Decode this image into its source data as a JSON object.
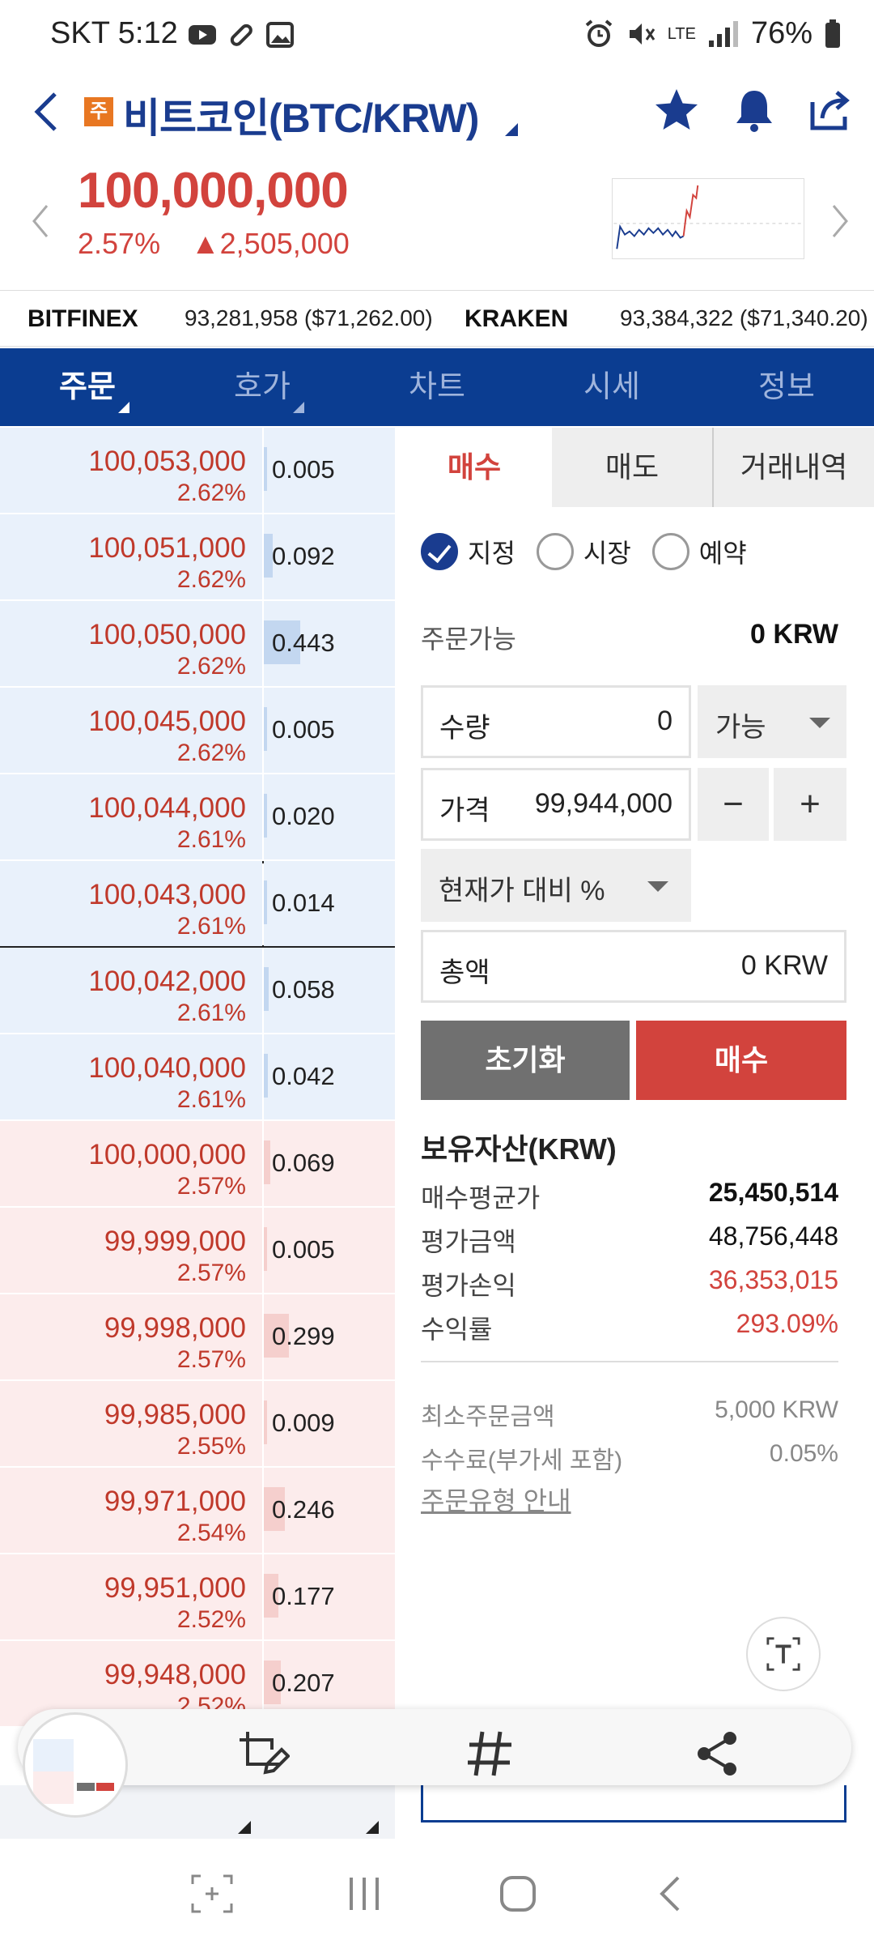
{
  "status": {
    "carrier": "SKT",
    "time": "5:12",
    "battery": "76%",
    "network": "LTE"
  },
  "header": {
    "badge": "주",
    "title": "비트코인(BTC/KRW)"
  },
  "ticker": {
    "price": "100,000,000",
    "change_pct": "2.57%",
    "change_amt": "▲2,505,000"
  },
  "exchanges": [
    {
      "name": "BITFINEX",
      "value": "93,281,958 ($71,262.00)"
    },
    {
      "name": "KRAKEN",
      "value": "93,384,322 ($71,340.20)"
    }
  ],
  "tabs": [
    {
      "label": "주문"
    },
    {
      "label": "호가"
    },
    {
      "label": "차트"
    },
    {
      "label": "시세"
    },
    {
      "label": "정보"
    }
  ],
  "orderbook": {
    "asks": [
      {
        "price": "100,053,000",
        "pct": "2.62%",
        "qty": "0.005",
        "depth": 0.01
      },
      {
        "price": "100,051,000",
        "pct": "2.62%",
        "qty": "0.092",
        "depth": 0.07
      },
      {
        "price": "100,050,000",
        "pct": "2.62%",
        "qty": "0.443",
        "depth": 0.28
      },
      {
        "price": "100,045,000",
        "pct": "2.62%",
        "qty": "0.005",
        "depth": 0.01
      },
      {
        "price": "100,044,000",
        "pct": "2.61%",
        "qty": "0.020",
        "depth": 0.02
      },
      {
        "price": "100,043,000",
        "pct": "2.61%",
        "qty": "0.014",
        "depth": 0.02
      },
      {
        "price": "100,042,000",
        "pct": "2.61%",
        "qty": "0.058",
        "depth": 0.04
      },
      {
        "price": "100,040,000",
        "pct": "2.61%",
        "qty": "0.042",
        "depth": 0.03
      }
    ],
    "bids": [
      {
        "price": "100,000,000",
        "pct": "2.57%",
        "qty": "0.069",
        "depth": 0.05
      },
      {
        "price": "99,999,000",
        "pct": "2.57%",
        "qty": "0.005",
        "depth": 0.01
      },
      {
        "price": "99,998,000",
        "pct": "2.57%",
        "qty": "0.299",
        "depth": 0.19
      },
      {
        "price": "99,985,000",
        "pct": "2.55%",
        "qty": "0.009",
        "depth": 0.01
      },
      {
        "price": "99,971,000",
        "pct": "2.54%",
        "qty": "0.246",
        "depth": 0.16
      },
      {
        "price": "99,951,000",
        "pct": "2.52%",
        "qty": "0.177",
        "depth": 0.11
      },
      {
        "price": "99,948,000",
        "pct": "2.52%",
        "qty": "0.207",
        "depth": 0.13
      }
    ]
  },
  "order": {
    "tabs": [
      {
        "label": "매수"
      },
      {
        "label": "매도"
      },
      {
        "label": "거래내역"
      }
    ],
    "types": [
      {
        "label": "지정",
        "checked": true
      },
      {
        "label": "시장",
        "checked": false
      },
      {
        "label": "예약",
        "checked": false
      }
    ],
    "avail_label": "주문가능",
    "avail_value": "0 KRW",
    "qty_label": "수량",
    "qty_value": "0",
    "qty_mode": "가능",
    "price_label": "가격",
    "price_value": "99,944,000",
    "minus": "−",
    "plus": "+",
    "pct_select": "현재가 대비 %",
    "total_label": "총액",
    "total_value": "0 KRW",
    "reset": "초기화",
    "buy": "매수"
  },
  "holdings": {
    "title": "보유자산(KRW)",
    "rows": [
      {
        "label": "매수평균가",
        "value": "25,450,514"
      },
      {
        "label": "평가금액",
        "value": "48,756,448"
      },
      {
        "label": "평가손익",
        "value": "36,353,015"
      },
      {
        "label": "수익률",
        "value": "293.09%"
      }
    ]
  },
  "info": {
    "rows": [
      {
        "label": "최소주문금액",
        "value": "5,000 KRW"
      },
      {
        "label": "수수료(부가세 포함)",
        "value": "0.05%"
      }
    ],
    "guide": "주문유형 안내"
  },
  "colors": {
    "brand": "#0b3d91",
    "up": "#d2433d",
    "ask_bg": "#e9f1fb",
    "bid_bg": "#fcecec"
  }
}
